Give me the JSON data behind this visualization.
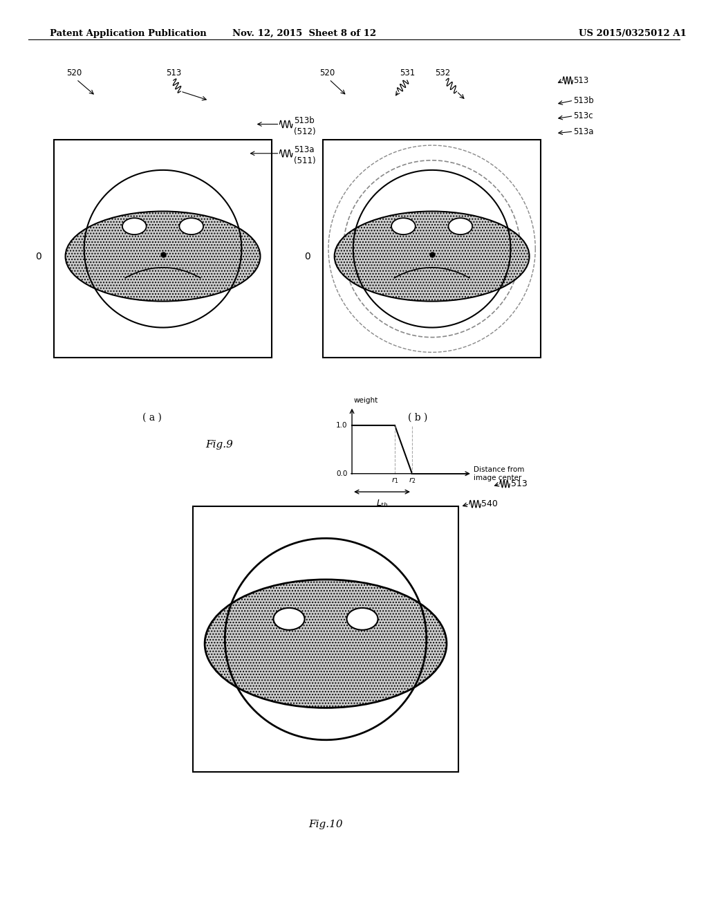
{
  "bg_color": "#ffffff",
  "header_left": "Patent Application Publication",
  "header_mid": "Nov. 12, 2015  Sheet 8 of 12",
  "header_right": "US 2015/0325012 A1",
  "fig9_label": "Fig.9",
  "fig10_label": "Fig.10",
  "fig_a_label": "( a )",
  "fig_b_label": "( b )",
  "shade_color": "#d0d0d0",
  "line_color": "#000000",
  "dashed_color": "#888888"
}
